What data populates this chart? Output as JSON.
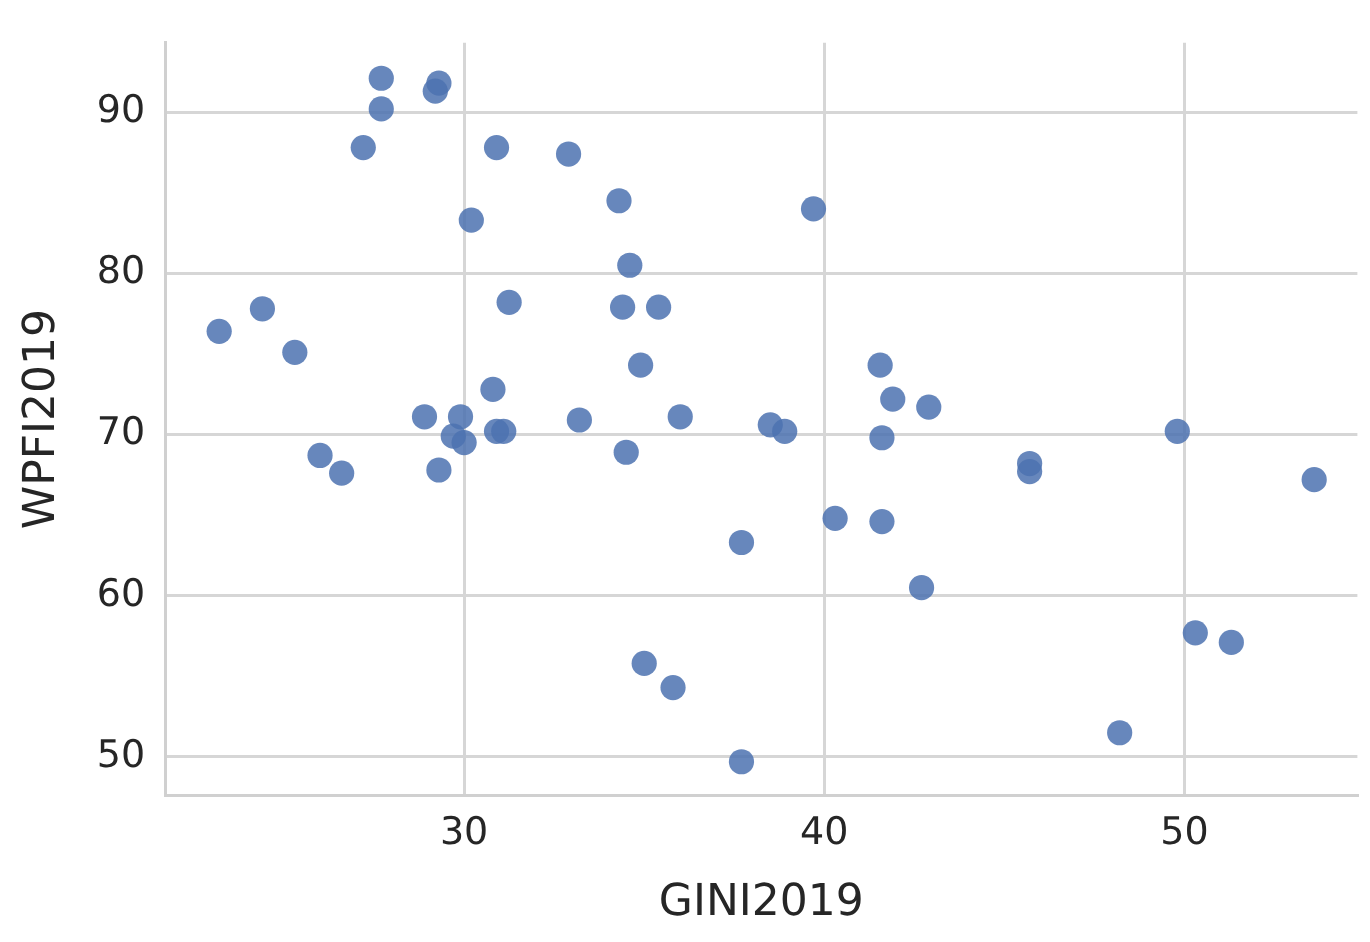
{
  "chart_data": {
    "type": "scatter",
    "xlabel": "GINI2019",
    "ylabel": "WPFI2019",
    "x": [
      27.7,
      29.3,
      29.2,
      27.7,
      27.2,
      30.9,
      32.9,
      34.3,
      30.2,
      34.6,
      23.2,
      24.4,
      25.3,
      31.25,
      34.4,
      35.4,
      34.9,
      30.8,
      28.9,
      29.9,
      29.7,
      30.0,
      30.9,
      31.1,
      33.2,
      36.0,
      38.5,
      26.0,
      26.6,
      29.3,
      34.5,
      37.7,
      35.0,
      35.8,
      37.7,
      39.7,
      41.55,
      41.9,
      42.9,
      41.6,
      38.9,
      45.7,
      45.7,
      49.8,
      53.6,
      40.3,
      41.6,
      42.7,
      50.3,
      51.3,
      48.2
    ],
    "series": [
      {
        "color": "#4c72b0",
        "values": [
          92.1,
          91.8,
          91.3,
          90.2,
          87.8,
          87.8,
          87.4,
          84.5,
          83.3,
          80.5,
          76.4,
          77.8,
          75.1,
          78.2,
          77.9,
          77.9,
          74.3,
          72.8,
          71.1,
          71.1,
          69.9,
          69.5,
          70.2,
          70.2,
          70.9,
          71.1,
          70.6,
          68.7,
          67.6,
          67.8,
          68.9,
          63.3,
          55.8,
          54.3,
          49.7,
          84.0,
          74.3,
          72.2,
          71.7,
          69.8,
          70.2,
          68.2,
          67.7,
          70.2,
          67.2,
          64.8,
          64.6,
          60.5,
          57.7,
          57.1,
          51.5
        ]
      }
    ],
    "xlim": [
      21.7,
      54.8
    ],
    "ylim": [
      47.6,
      94.3
    ],
    "xticks": [
      30,
      40,
      50
    ],
    "yticks": [
      50,
      60,
      70,
      80,
      90
    ],
    "grid": true,
    "marker": "circle",
    "legend": false
  }
}
